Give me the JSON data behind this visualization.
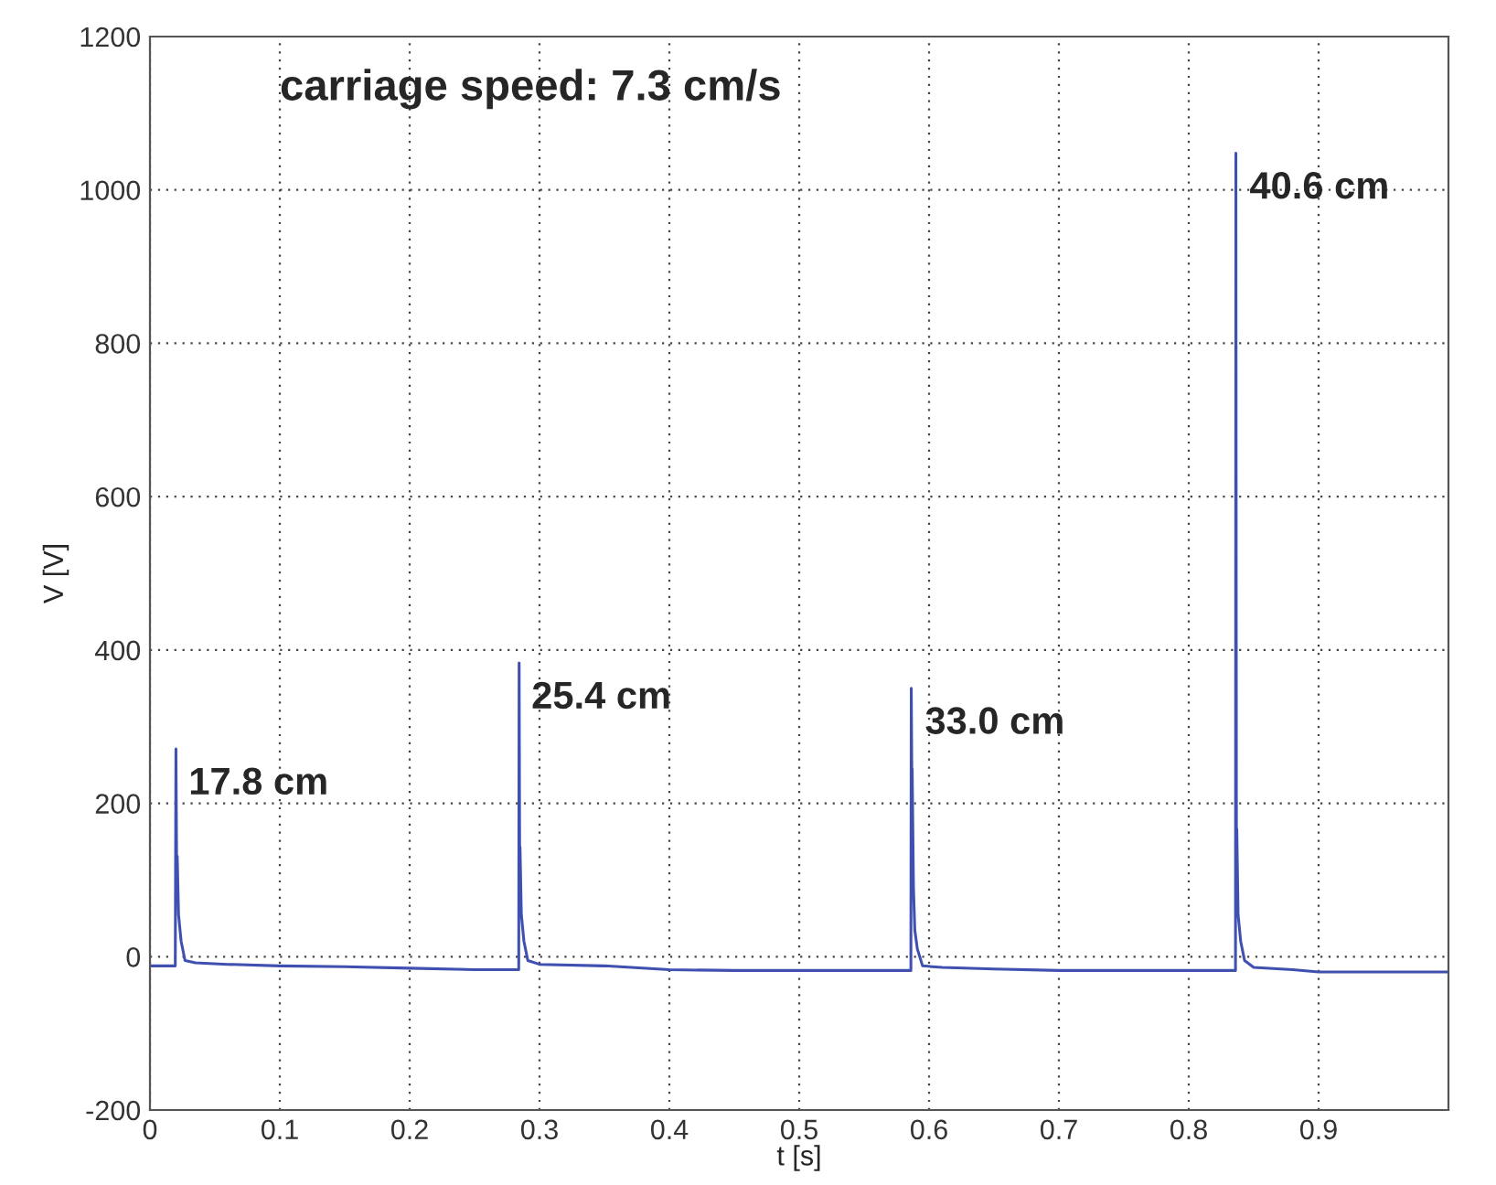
{
  "chart_data": {
    "type": "line",
    "xlabel": "t [s]",
    "ylabel": "V [V]",
    "x": [
      0,
      0.0195,
      0.02,
      0.0205,
      0.021,
      0.022,
      0.024,
      0.027,
      0.035,
      0.06,
      0.1,
      0.15,
      0.2,
      0.25,
      0.284,
      0.2843,
      0.2847,
      0.285,
      0.286,
      0.288,
      0.291,
      0.3,
      0.35,
      0.4,
      0.45,
      0.5,
      0.586,
      0.5863,
      0.5867,
      0.587,
      0.588,
      0.589,
      0.591,
      0.595,
      0.61,
      0.65,
      0.7,
      0.75,
      0.836,
      0.8363,
      0.8367,
      0.837,
      0.838,
      0.84,
      0.843,
      0.85,
      0.88,
      0.9,
      0.95,
      1.0
    ],
    "series": [
      {
        "color": "#4050b0",
        "values": [
          -12,
          -12,
          271,
          131,
          131,
          55,
          20,
          -5,
          -8,
          -10,
          -12,
          -13,
          -15,
          -17,
          -17,
          383,
          143,
          143,
          55,
          20,
          -5,
          -10,
          -12,
          -17,
          -18,
          -18,
          -18,
          350,
          245,
          245,
          90,
          35,
          10,
          -12,
          -14,
          -16,
          -18,
          -18,
          -18,
          1048,
          167,
          167,
          55,
          20,
          -5,
          -14,
          -17,
          -20,
          -20,
          -20
        ]
      }
    ],
    "xlim": [
      0,
      1
    ],
    "ylim": [
      -200,
      1200
    ],
    "xticks": [
      0,
      0.1,
      0.2,
      0.3,
      0.4,
      0.5,
      0.6,
      0.7,
      0.8,
      0.9
    ],
    "yticks": [
      -200,
      0,
      200,
      400,
      600,
      800,
      1000,
      1200
    ],
    "grid": true,
    "line_style": "solid",
    "marker": "none",
    "annotations": [
      "carriage speed: 7.3 cm/s",
      {
        "text": "17.8 cm",
        "x": 0.02,
        "y": 271
      },
      {
        "text": "25.4 cm",
        "x": 0.284,
        "y": 383
      },
      {
        "text": "33.0 cm",
        "x": 0.587,
        "y": 350
      },
      {
        "text": "40.6 cm",
        "x": 0.837,
        "y": 1048
      }
    ]
  }
}
